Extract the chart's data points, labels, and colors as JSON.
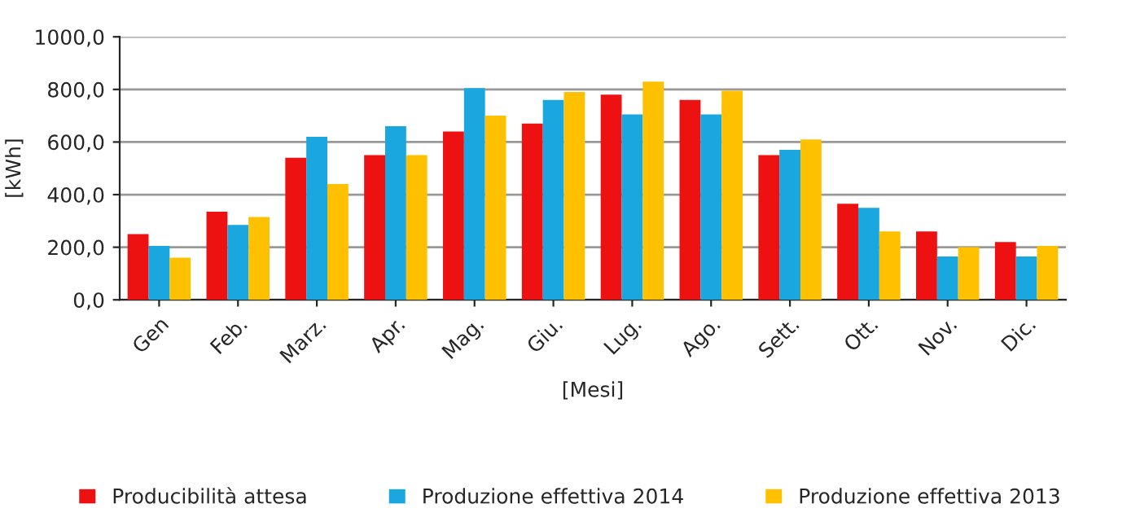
{
  "chart_data": {
    "type": "bar",
    "xlabel": "[Mesi]",
    "ylabel": "[kWh]",
    "categories": [
      "Gen",
      "Feb.",
      "Marz.",
      "Apr.",
      "Mag.",
      "Giu.",
      "Lug.",
      "Ago.",
      "Sett.",
      "Ott.",
      "Nov.",
      "Dic."
    ],
    "series": [
      {
        "name": "Producibilità attesa",
        "color": "#ee1111",
        "values": [
          250,
          335,
          540,
          550,
          640,
          670,
          780,
          760,
          550,
          365,
          260,
          220
        ]
      },
      {
        "name": "Produzione effettiva 2014",
        "color": "#1aa7e0",
        "values": [
          205,
          285,
          620,
          660,
          805,
          760,
          705,
          705,
          570,
          350,
          165,
          165
        ]
      },
      {
        "name": "Produzione effettiva 2013",
        "color": "#ffc000",
        "values": [
          160,
          315,
          440,
          550,
          700,
          790,
          830,
          795,
          610,
          260,
          200,
          205
        ]
      }
    ],
    "ylim": [
      0,
      1000
    ],
    "yticks": [
      {
        "value": 0,
        "label": "0,0"
      },
      {
        "value": 200,
        "label": "200,0"
      },
      {
        "value": 400,
        "label": "400,0"
      },
      {
        "value": 600,
        "label": "600,0"
      },
      {
        "value": 800,
        "label": "800,0"
      },
      {
        "value": 1000,
        "label": "1000,0"
      }
    ],
    "grid": "y",
    "legend": "bottom"
  }
}
